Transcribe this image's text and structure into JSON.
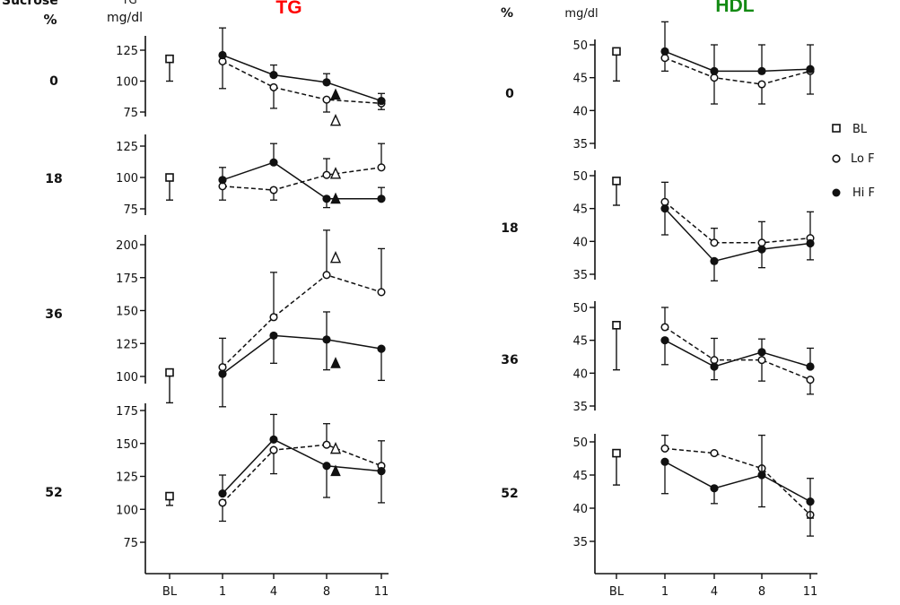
{
  "colors": {
    "ink": "#111111",
    "tg_title": "#ff0000",
    "hdl_title": "#138a13"
  },
  "left": {
    "title": "TG",
    "cut_header_top": "Sucrose",
    "cut_header_unit_top": "TG",
    "pct_header": "%",
    "unit": "mg/dl"
  },
  "right": {
    "title": "HDL",
    "pct_header": "%",
    "unit": "mg/dl"
  },
  "x_tick_labels": [
    "BL",
    "1",
    "4",
    "8",
    "11"
  ],
  "legend": [
    {
      "label": "BL",
      "marker": "open-square"
    },
    {
      "label": "Lo F",
      "marker": "open-circle"
    },
    {
      "label": "Hi F",
      "marker": "filled-circle"
    }
  ],
  "chart_data": [
    {
      "type": "line",
      "title": "TG",
      "ylabel": "mg/dl",
      "x_categories": [
        "BL",
        "1",
        "4",
        "8",
        "11"
      ],
      "panels": [
        {
          "sucrose_pct": "0",
          "ylim": [
            75,
            135
          ],
          "yticks": [
            75,
            100,
            125
          ],
          "baseline": {
            "value": 118,
            "err": [
              100,
              120
            ]
          },
          "series": [
            {
              "name": "Lo F",
              "values": [
                116,
                95,
                85,
                82
              ],
              "err_low": [
                94,
                78,
                75,
                77
              ],
              "err_high": [
                116,
                95,
                85,
                85
              ]
            },
            {
              "name": "Hi F",
              "values": [
                121,
                105,
                99,
                84
              ],
              "err_low": [
                121,
                105,
                99,
                84
              ],
              "err_high": [
                143,
                113,
                106,
                90
              ]
            }
          ],
          "triangles": {
            "open": [
              68
            ],
            "filled": [
              89
            ]
          }
        },
        {
          "sucrose_pct": "18",
          "ylim": [
            75,
            125
          ],
          "yticks": [
            75,
            100,
            125
          ],
          "baseline": {
            "value": 100,
            "err": [
              82,
              100
            ]
          },
          "series": [
            {
              "name": "Lo F",
              "values": [
                93,
                90,
                102,
                108
              ],
              "err_low": [
                82,
                82,
                102,
                108
              ],
              "err_high": [
                93,
                90,
                115,
                127
              ]
            },
            {
              "name": "Hi F",
              "values": [
                98,
                112,
                83,
                83
              ],
              "err_low": [
                98,
                112,
                76,
                83
              ],
              "err_high": [
                108,
                127,
                83,
                92
              ]
            }
          ],
          "triangles": {
            "open": [
              103
            ],
            "filled": [
              83
            ]
          }
        },
        {
          "sucrose_pct": "36",
          "ylim": [
            75,
            200
          ],
          "yticks": [
            100,
            125,
            150,
            175,
            200
          ],
          "baseline": {
            "value": 103,
            "err": [
              80,
              103
            ]
          },
          "series": [
            {
              "name": "Lo F",
              "values": [
                107,
                145,
                177,
                164
              ],
              "err_low": [
                107,
                145,
                177,
                164
              ],
              "err_high": [
                129,
                179,
                211,
                197
              ]
            },
            {
              "name": "Hi F",
              "values": [
                102,
                131,
                128,
                121
              ],
              "err_low": [
                77,
                110,
                105,
                97
              ],
              "err_high": [
                102,
                131,
                149,
                121
              ]
            }
          ],
          "triangles": {
            "open": [
              190
            ],
            "filled": [
              110
            ]
          }
        },
        {
          "sucrose_pct": "52",
          "ylim": [
            50,
            175
          ],
          "yticks": [
            75,
            100,
            125,
            150,
            175
          ],
          "baseline": {
            "value": 110,
            "err": [
              103,
              110
            ]
          },
          "series": [
            {
              "name": "Lo F",
              "values": [
                105,
                145,
                149,
                133
              ],
              "err_low": [
                91,
                127,
                149,
                133
              ],
              "err_high": [
                105,
                145,
                165,
                152
              ]
            },
            {
              "name": "Hi F",
              "values": [
                112,
                153,
                133,
                129
              ],
              "err_low": [
                112,
                153,
                109,
                105
              ],
              "err_high": [
                126,
                172,
                133,
                129
              ]
            }
          ],
          "triangles": {
            "open": [
              146
            ],
            "filled": [
              129
            ]
          }
        }
      ]
    },
    {
      "type": "line",
      "title": "HDL",
      "ylabel": "mg/dl",
      "x_categories": [
        "BL",
        "1",
        "4",
        "8",
        "11"
      ],
      "panels": [
        {
          "sucrose_pct": "0",
          "ylim": [
            35,
            50
          ],
          "yticks": [
            35,
            40,
            45,
            50
          ],
          "baseline": {
            "value": 49,
            "err": [
              44.5,
              49
            ]
          },
          "series": [
            {
              "name": "Lo F",
              "values": [
                48,
                45,
                44,
                46
              ],
              "err_low": [
                46,
                41,
                41,
                42.5
              ],
              "err_high": [
                48,
                45,
                44,
                46
              ]
            },
            {
              "name": "Hi F",
              "values": [
                49,
                46,
                46,
                46.3
              ],
              "err_low": [
                49,
                46,
                46,
                46.3
              ],
              "err_high": [
                53.5,
                50,
                50,
                50
              ]
            }
          ]
        },
        {
          "sucrose_pct": "18",
          "ylim": [
            35,
            50
          ],
          "yticks": [
            35,
            40,
            45,
            50
          ],
          "baseline": {
            "value": 49.2,
            "err": [
              45.5,
              49.2
            ]
          },
          "series": [
            {
              "name": "Lo F",
              "values": [
                46,
                39.8,
                39.8,
                40.5
              ],
              "err_low": [
                46,
                39.8,
                39.8,
                40.5
              ],
              "err_high": [
                49,
                42,
                43,
                44.5
              ]
            },
            {
              "name": "Hi F",
              "values": [
                45,
                37,
                38.8,
                39.7
              ],
              "err_low": [
                41,
                34,
                36,
                37.2
              ],
              "err_high": [
                45,
                37,
                38.8,
                39.7
              ]
            }
          ]
        },
        {
          "sucrose_pct": "36",
          "ylim": [
            35,
            50
          ],
          "yticks": [
            35,
            40,
            45,
            50
          ],
          "baseline": {
            "value": 47.3,
            "err": [
              40.5,
              47.3
            ]
          },
          "series": [
            {
              "name": "Lo F",
              "values": [
                47,
                42,
                42,
                39
              ],
              "err_low": [
                47,
                42,
                38.8,
                36.8
              ],
              "err_high": [
                50,
                45.3,
                42,
                39
              ]
            },
            {
              "name": "Hi F",
              "values": [
                45,
                41,
                43.2,
                41
              ],
              "err_low": [
                41.3,
                39,
                43.2,
                41
              ],
              "err_high": [
                45,
                41,
                45.2,
                43.8
              ]
            }
          ]
        },
        {
          "sucrose_pct": "52",
          "ylim": [
            35,
            50
          ],
          "yticks": [
            35,
            40,
            45,
            50
          ],
          "baseline": {
            "value": 48.3,
            "err": [
              43.5,
              48.3
            ]
          },
          "series": [
            {
              "name": "Lo F",
              "values": [
                49,
                48.3,
                46,
                39
              ],
              "err_low": [
                49,
                48.3,
                40.2,
                35.8
              ],
              "err_high": [
                51,
                48.3,
                46,
                39
              ]
            },
            {
              "name": "Hi F",
              "values": [
                47,
                43,
                45,
                41
              ],
              "err_low": [
                42.2,
                40.7,
                45,
                38.5
              ],
              "err_high": [
                47,
                43,
                51,
                44.5
              ]
            }
          ]
        }
      ]
    }
  ]
}
